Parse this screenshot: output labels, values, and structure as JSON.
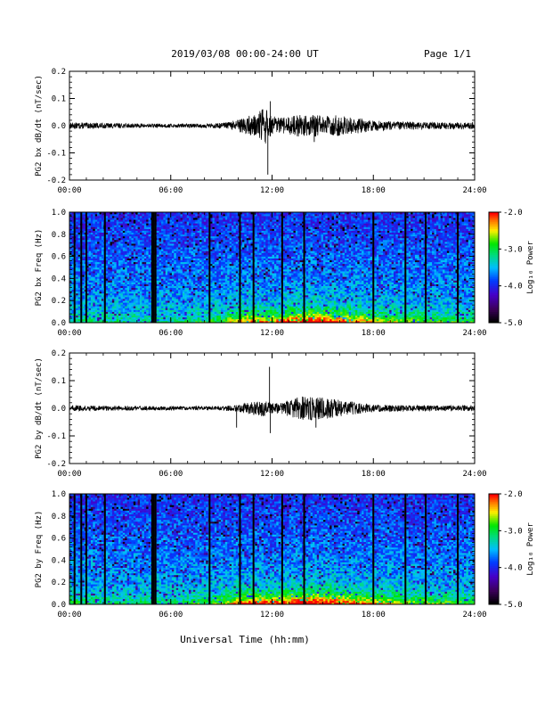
{
  "header": {
    "title": "2019/03/08  00:00-24:00 UT",
    "page": "Page 1/1"
  },
  "footer": {
    "xlabel": "Universal Time (hh:mm)"
  },
  "chart_data": [
    {
      "type": "line",
      "ylabel": "PG2 bx dB/dt (nT/sec)",
      "ylim": [
        -0.2,
        0.2
      ],
      "yticks": [
        "-0.2",
        "-0.1",
        "0.0",
        "0.1",
        "0.2"
      ],
      "xticks": [
        "00:00",
        "06:00",
        "12:00",
        "18:00",
        "24:00"
      ],
      "xlim_hours": [
        0,
        24
      ],
      "color": "#000000",
      "envelope": [
        {
          "t": 0,
          "a": 0.012
        },
        {
          "t": 2,
          "a": 0.01
        },
        {
          "t": 4,
          "a": 0.008
        },
        {
          "t": 6,
          "a": 0.007
        },
        {
          "t": 8,
          "a": 0.008
        },
        {
          "t": 9,
          "a": 0.01
        },
        {
          "t": 9.5,
          "a": 0.016
        },
        {
          "t": 10,
          "a": 0.022
        },
        {
          "t": 10.5,
          "a": 0.035
        },
        {
          "t": 11,
          "a": 0.04
        },
        {
          "t": 11.3,
          "a": 0.055
        },
        {
          "t": 11.6,
          "a": 0.07
        },
        {
          "t": 12,
          "a": 0.035
        },
        {
          "t": 12.5,
          "a": 0.03
        },
        {
          "t": 13,
          "a": 0.032
        },
        {
          "t": 13.5,
          "a": 0.04
        },
        {
          "t": 14,
          "a": 0.04
        },
        {
          "t": 15,
          "a": 0.04
        },
        {
          "t": 16,
          "a": 0.038
        },
        {
          "t": 17,
          "a": 0.03
        },
        {
          "t": 18,
          "a": 0.02
        },
        {
          "t": 19,
          "a": 0.016
        },
        {
          "t": 20,
          "a": 0.014
        },
        {
          "t": 22,
          "a": 0.013
        },
        {
          "t": 24,
          "a": 0.012
        }
      ],
      "spikes": [
        {
          "t": 11.75,
          "v": -0.18
        },
        {
          "t": 11.9,
          "v": 0.09
        },
        {
          "t": 11.45,
          "v": 0.06
        },
        {
          "t": 14.5,
          "v": -0.06
        }
      ]
    },
    {
      "type": "heatmap",
      "ylabel": "PG2 bx Freq (Hz)",
      "ylim": [
        0.0,
        1.0
      ],
      "yticks": [
        "0.0",
        "0.2",
        "0.4",
        "0.6",
        "0.8",
        "1.0"
      ],
      "xticks": [
        "00:00",
        "06:00",
        "12:00",
        "18:00",
        "24:00"
      ],
      "colorbar": {
        "label": "Log₁₀ Power",
        "ticks": [
          "-2.0",
          "-3.0",
          "-4.0",
          "-5.0"
        ],
        "range": [
          -5.0,
          -2.0
        ]
      },
      "gaps_hours": [
        0.3,
        0.7,
        1.0,
        2.1,
        4.9,
        5.0,
        5.1,
        8.3,
        10.1,
        10.9,
        12.6,
        13.9,
        18.0,
        19.9,
        21.1,
        23.0
      ],
      "activity": [
        {
          "t": 0,
          "a": 0.15
        },
        {
          "t": 6,
          "a": 0.12
        },
        {
          "t": 9,
          "a": 0.25
        },
        {
          "t": 10,
          "a": 0.45
        },
        {
          "t": 11,
          "a": 0.55
        },
        {
          "t": 12,
          "a": 0.5
        },
        {
          "t": 13,
          "a": 0.6
        },
        {
          "t": 14,
          "a": 0.7
        },
        {
          "t": 16,
          "a": 0.6
        },
        {
          "t": 18,
          "a": 0.4
        },
        {
          "t": 20,
          "a": 0.3
        },
        {
          "t": 24,
          "a": 0.2
        }
      ]
    },
    {
      "type": "line",
      "ylabel": "PG2 by dB/dt (nT/sec)",
      "ylim": [
        -0.2,
        0.2
      ],
      "yticks": [
        "-0.2",
        "-0.1",
        "0.0",
        "0.1",
        "0.2"
      ],
      "xticks": [
        "00:00",
        "06:00",
        "12:00",
        "18:00",
        "24:00"
      ],
      "xlim_hours": [
        0,
        24
      ],
      "color": "#000000",
      "envelope": [
        {
          "t": 0,
          "a": 0.01
        },
        {
          "t": 2,
          "a": 0.009
        },
        {
          "t": 4,
          "a": 0.008
        },
        {
          "t": 6,
          "a": 0.007
        },
        {
          "t": 8,
          "a": 0.007
        },
        {
          "t": 9,
          "a": 0.008
        },
        {
          "t": 10,
          "a": 0.012
        },
        {
          "t": 10.5,
          "a": 0.02
        },
        {
          "t": 11,
          "a": 0.025
        },
        {
          "t": 11.5,
          "a": 0.03
        },
        {
          "t": 12,
          "a": 0.022
        },
        {
          "t": 12.5,
          "a": 0.018
        },
        {
          "t": 13,
          "a": 0.03
        },
        {
          "t": 13.5,
          "a": 0.04
        },
        {
          "t": 14,
          "a": 0.045
        },
        {
          "t": 15,
          "a": 0.04
        },
        {
          "t": 16,
          "a": 0.03
        },
        {
          "t": 17,
          "a": 0.022
        },
        {
          "t": 18,
          "a": 0.014
        },
        {
          "t": 19,
          "a": 0.012
        },
        {
          "t": 20,
          "a": 0.011
        },
        {
          "t": 22,
          "a": 0.01
        },
        {
          "t": 24,
          "a": 0.01
        }
      ],
      "spikes": [
        {
          "t": 11.85,
          "v": 0.15
        },
        {
          "t": 11.9,
          "v": -0.09
        },
        {
          "t": 9.9,
          "v": -0.07
        },
        {
          "t": 14.6,
          "v": -0.07
        }
      ]
    },
    {
      "type": "heatmap",
      "ylabel": "PG2 by Freq (Hz)",
      "ylim": [
        0.0,
        1.0
      ],
      "yticks": [
        "0.0",
        "0.2",
        "0.4",
        "0.6",
        "0.8",
        "1.0"
      ],
      "xticks": [
        "00:00",
        "06:00",
        "12:00",
        "18:00",
        "24:00"
      ],
      "colorbar": {
        "label": "Log₁₀ Power",
        "ticks": [
          "-2.0",
          "-3.0",
          "-4.0",
          "-5.0"
        ],
        "range": [
          -5.0,
          -2.0
        ]
      },
      "gaps_hours": [
        0.3,
        0.7,
        1.0,
        2.1,
        4.9,
        5.0,
        5.1,
        8.3,
        10.1,
        10.9,
        12.6,
        13.9,
        18.0,
        19.9,
        21.1,
        23.0
      ],
      "activity": [
        {
          "t": 0,
          "a": 0.2
        },
        {
          "t": 6,
          "a": 0.15
        },
        {
          "t": 9,
          "a": 0.3
        },
        {
          "t": 10,
          "a": 0.5
        },
        {
          "t": 11,
          "a": 0.65
        },
        {
          "t": 12,
          "a": 0.55
        },
        {
          "t": 13,
          "a": 0.6
        },
        {
          "t": 14,
          "a": 0.75
        },
        {
          "t": 16,
          "a": 0.65
        },
        {
          "t": 18,
          "a": 0.45
        },
        {
          "t": 20,
          "a": 0.35
        },
        {
          "t": 24,
          "a": 0.25
        }
      ]
    }
  ]
}
